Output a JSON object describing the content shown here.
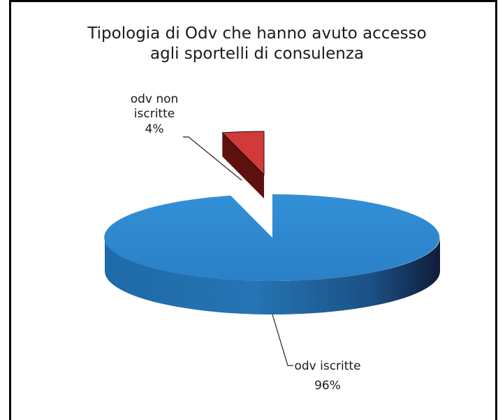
{
  "chart_data": {
    "type": "pie",
    "title": "Tipologia di Odv che hanno avuto accesso agli sportelli di consulenza",
    "title_lines": [
      "Tipologia di Odv che hanno avuto accesso",
      "agli sportelli di consulenza"
    ],
    "slices": [
      {
        "name": "odv iscritte",
        "value": 96,
        "label_lines": [
          "odv iscritte"
        ],
        "percent_label": "96%",
        "color": "#2a82c8"
      },
      {
        "name": "odv non iscritte",
        "value": 4,
        "label_lines": [
          "odv non",
          "iscritte"
        ],
        "percent_label": "4%",
        "color": "#d23a3a"
      }
    ],
    "style": "3d-exploded",
    "legend": "none"
  }
}
